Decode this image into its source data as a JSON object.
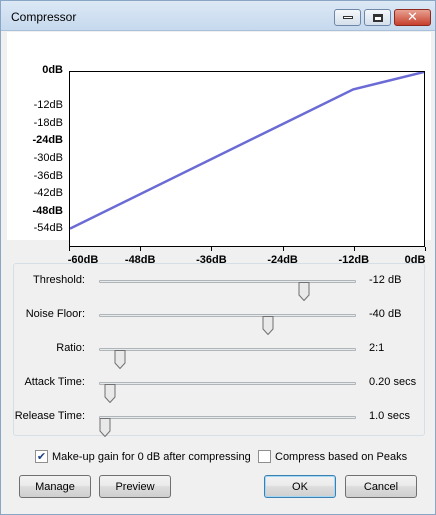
{
  "window": {
    "title": "Compressor",
    "controls": {
      "minimize": "minimize",
      "maximize": "maximize",
      "close": "✕"
    }
  },
  "chart_data": {
    "type": "line",
    "title": "",
    "xlabel": "",
    "ylabel": "",
    "x_ticks": [
      "-60dB",
      "-48dB",
      "-36dB",
      "-24dB",
      "-12dB",
      "0dB"
    ],
    "y_ticks": [
      {
        "label": "0dB",
        "bold": true
      },
      {
        "label": "-12dB",
        "bold": false
      },
      {
        "label": "-18dB",
        "bold": false
      },
      {
        "label": "-24dB",
        "bold": true
      },
      {
        "label": "-30dB",
        "bold": false
      },
      {
        "label": "-36dB",
        "bold": false
      },
      {
        "label": "-42dB",
        "bold": false
      },
      {
        "label": "-48dB",
        "bold": true
      },
      {
        "label": "-54dB",
        "bold": false
      }
    ],
    "xlim": [
      -60,
      0
    ],
    "ylim": [
      -60,
      0
    ],
    "grid": false,
    "series": [
      {
        "x": [
          -60,
          -12,
          0
        ],
        "y": [
          -54,
          -6,
          0
        ],
        "color": "#6b6bd6"
      }
    ]
  },
  "controls": {
    "threshold": {
      "label": "Threshold:",
      "value": "-12 dB",
      "position": 0.8
    },
    "noise_floor": {
      "label": "Noise Floor:",
      "value": "-40 dB",
      "position": 0.66
    },
    "ratio": {
      "label": "Ratio:",
      "value": "2:1",
      "position": 0.08
    },
    "attack_time": {
      "label": "Attack Time:",
      "value": "0.20 secs",
      "position": 0.04
    },
    "release_time": {
      "label": "Release Time:",
      "value": "1.0 secs",
      "position": 0.02
    }
  },
  "options": {
    "makeup_gain": {
      "label": "Make-up gain for 0 dB after compressing",
      "checked": true
    },
    "peaks": {
      "label": "Compress based on Peaks",
      "checked": false
    }
  },
  "buttons": {
    "manage": "Manage",
    "preview": "Preview",
    "ok": "OK",
    "cancel": "Cancel"
  }
}
